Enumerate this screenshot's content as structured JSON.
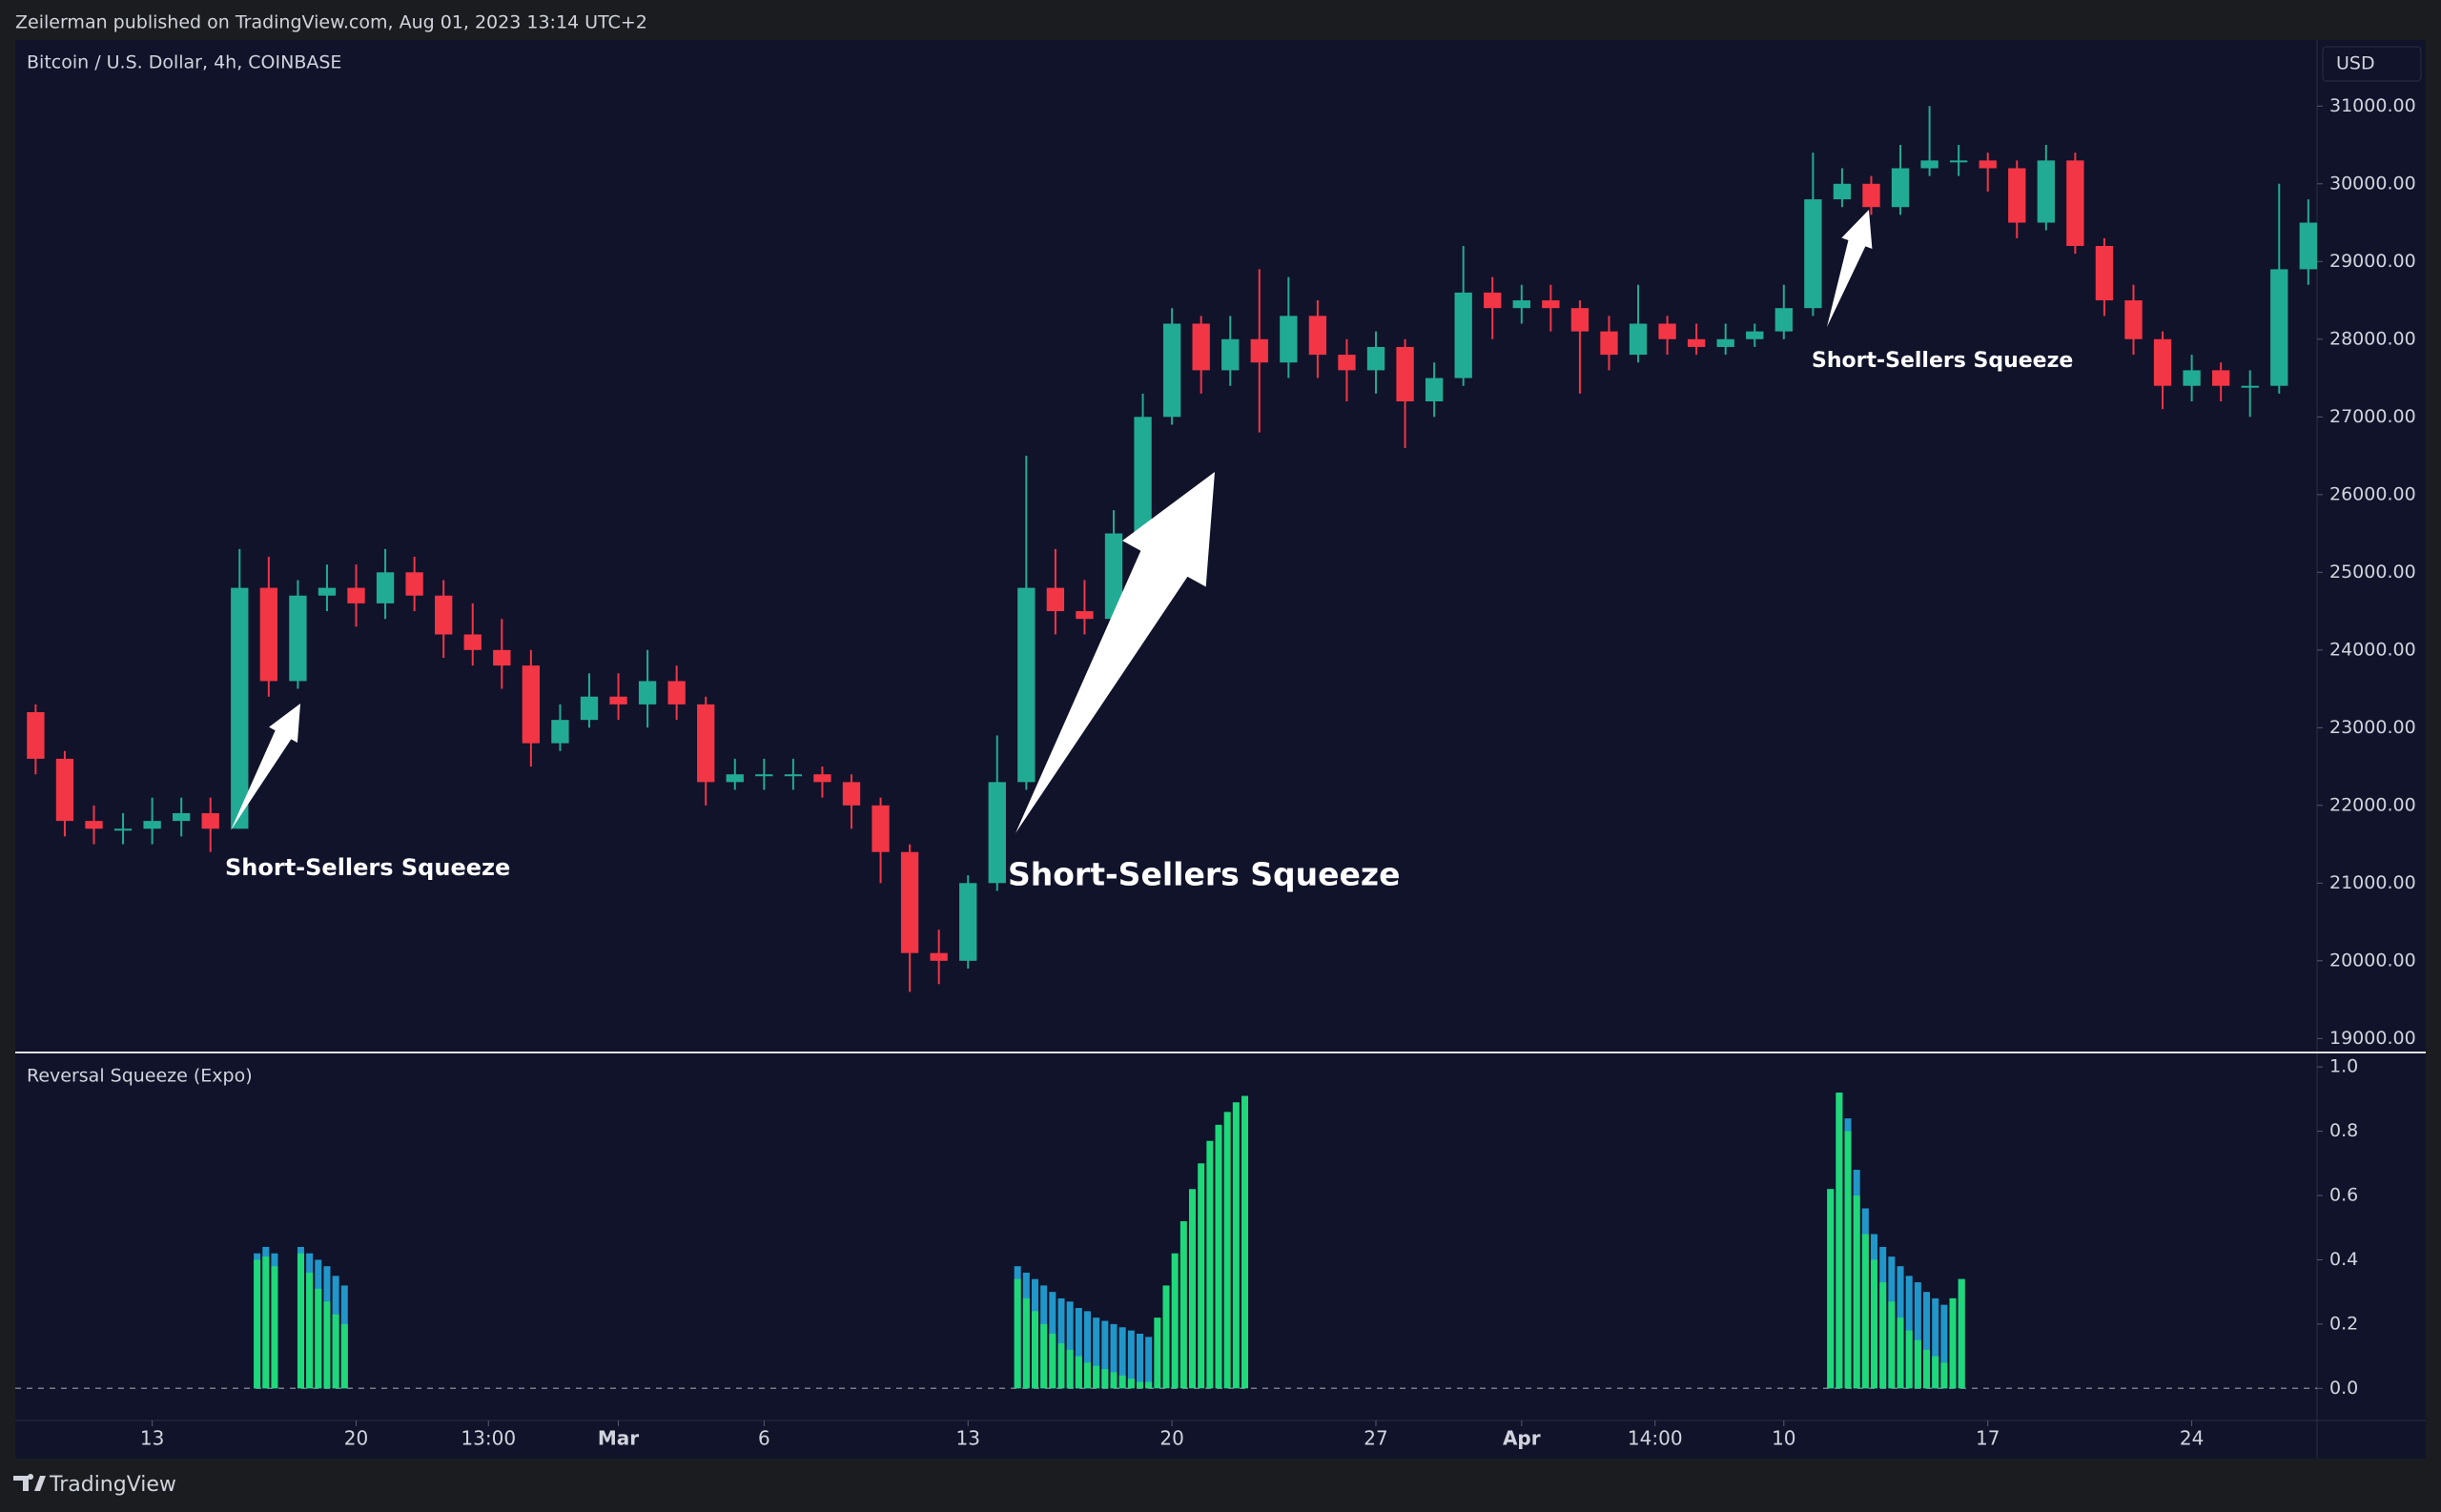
{
  "header": "Zeilerman published on TradingView.com, Aug 01, 2023 13:14 UTC+2",
  "footer": "TradingView",
  "chart_data": [
    {
      "type": "candlestick",
      "title": "Bitcoin / U.S. Dollar, 4h, COINBASE",
      "currency": "USD",
      "up_color": "#22ab94",
      "down_color": "#f23645",
      "x": [
        -4,
        -3,
        -2,
        -1,
        0,
        1,
        2,
        3,
        4,
        5,
        6,
        7,
        8,
        9,
        10,
        11,
        12,
        13,
        14,
        15,
        16,
        17,
        18,
        19,
        20,
        21,
        22,
        23,
        24,
        25,
        26,
        27,
        28,
        29,
        30,
        31,
        32,
        33,
        34,
        35,
        36,
        37,
        38,
        39,
        40,
        41,
        42,
        43,
        44,
        45,
        46,
        47,
        48,
        49,
        50,
        51,
        52,
        53,
        54,
        55,
        56,
        57,
        58,
        59,
        60,
        61,
        62,
        63,
        64,
        65,
        66,
        67,
        68,
        69,
        70,
        71,
        72,
        73,
        74
      ],
      "open": [
        23200,
        22600,
        21800,
        21700,
        21700,
        21800,
        21900,
        21700,
        24800,
        23600,
        24700,
        24800,
        24600,
        25000,
        24700,
        24200,
        24000,
        23800,
        22800,
        23100,
        23400,
        23300,
        23600,
        23300,
        22300,
        22400,
        22400,
        22400,
        22300,
        22000,
        21400,
        20100,
        20000,
        21000,
        22300,
        24800,
        24500,
        24400,
        25500,
        27000,
        28200,
        27600,
        28000,
        27700,
        28300,
        27800,
        27600,
        27900,
        27200,
        27500,
        28600,
        28400,
        28500,
        28400,
        28100,
        27800,
        28200,
        28000,
        27900,
        28000,
        28100,
        28400,
        29800,
        30000,
        29700,
        30200,
        30300,
        30300,
        30200,
        29500,
        30300,
        29200,
        28500,
        28000,
        27400,
        27600,
        27400,
        27400,
        28900
      ],
      "high": [
        23300,
        22700,
        22000,
        21900,
        22100,
        22100,
        22100,
        25300,
        25200,
        24900,
        25100,
        25100,
        25300,
        25200,
        24900,
        24600,
        24400,
        24000,
        23300,
        23700,
        23700,
        24000,
        23800,
        23400,
        22600,
        22600,
        22600,
        22500,
        22400,
        22100,
        21500,
        20400,
        21100,
        22900,
        26500,
        25300,
        24900,
        25800,
        27300,
        28400,
        28300,
        28300,
        28900,
        28800,
        28500,
        28000,
        28100,
        28000,
        27700,
        29200,
        28800,
        28700,
        28700,
        28500,
        28300,
        28700,
        28300,
        28200,
        28200,
        28200,
        28700,
        30400,
        30200,
        30100,
        30500,
        31000,
        30500,
        30400,
        30300,
        30500,
        30400,
        29300,
        28700,
        28100,
        27800,
        27700,
        27600,
        30000,
        29800
      ],
      "low": [
        22400,
        21600,
        21500,
        21500,
        21500,
        21600,
        21400,
        21700,
        23400,
        23500,
        24500,
        24300,
        24400,
        24500,
        23900,
        23800,
        23500,
        22500,
        22700,
        23000,
        23100,
        23000,
        23100,
        22000,
        22200,
        22200,
        22200,
        22100,
        21700,
        21000,
        19600,
        19700,
        19900,
        20900,
        22200,
        24200,
        24200,
        24300,
        25400,
        26900,
        27300,
        27400,
        26800,
        27500,
        27500,
        27200,
        27300,
        26600,
        27000,
        27400,
        28000,
        28200,
        28100,
        27300,
        27600,
        27700,
        27800,
        27800,
        27800,
        27900,
        28000,
        28300,
        29700,
        29600,
        29600,
        30100,
        30100,
        29900,
        29300,
        29400,
        29100,
        28300,
        27800,
        27100,
        27200,
        27200,
        27000,
        27300,
        28700
      ],
      "close": [
        22600,
        21800,
        21700,
        21700,
        21800,
        21900,
        21700,
        24800,
        23600,
        24700,
        24800,
        24600,
        25000,
        24700,
        24200,
        24000,
        23800,
        22800,
        23100,
        23400,
        23300,
        23600,
        23300,
        22300,
        22400,
        22400,
        22400,
        22300,
        22000,
        21400,
        20100,
        20000,
        21000,
        22300,
        24800,
        24500,
        24400,
        25500,
        27000,
        28200,
        27600,
        28000,
        27700,
        28300,
        27800,
        27600,
        27900,
        27200,
        27500,
        28600,
        28400,
        28500,
        28400,
        28100,
        27800,
        28200,
        28000,
        27900,
        28000,
        28100,
        28400,
        29800,
        30000,
        29700,
        30200,
        30300,
        30300,
        30200,
        29500,
        30300,
        29200,
        28500,
        28000,
        27400,
        27600,
        27400,
        27400,
        28900,
        29500
      ],
      "xlim": [
        -4.7,
        74.3
      ],
      "ylim": [
        18820,
        31850
      ],
      "yticks": [
        {
          "value": 19000,
          "label": "19000.00"
        },
        {
          "value": 20000,
          "label": "20000.00"
        },
        {
          "value": 21000,
          "label": "21000.00"
        },
        {
          "value": 22000,
          "label": "22000.00"
        },
        {
          "value": 23000,
          "label": "23000.00"
        },
        {
          "value": 24000,
          "label": "24000.00"
        },
        {
          "value": 25000,
          "label": "25000.00"
        },
        {
          "value": 26000,
          "label": "26000.00"
        },
        {
          "value": 27000,
          "label": "27000.00"
        },
        {
          "value": 28000,
          "label": "28000.00"
        },
        {
          "value": 29000,
          "label": "29000.00"
        },
        {
          "value": 30000,
          "label": "30000.00"
        },
        {
          "value": 31000,
          "label": "31000.00"
        }
      ],
      "annotations": [
        "Short-Sellers Squeeze",
        "Short-Sellers Squeeze",
        "Short-Sellers Squeeze"
      ]
    },
    {
      "type": "bar",
      "title": "Reversal Squeeze (Expo)",
      "x": [
        3.6,
        3.9,
        4.2,
        5.1,
        5.4,
        5.7,
        6.0,
        6.3,
        6.6,
        29.7,
        30.0,
        30.3,
        30.6,
        30.9,
        31.2,
        31.5,
        31.8,
        32.1,
        32.4,
        32.7,
        33.0,
        33.3,
        33.6,
        33.9,
        34.2,
        34.5,
        34.8,
        35.1,
        35.4,
        35.7,
        36.0,
        36.3,
        36.6,
        36.9,
        37.2,
        37.5,
        57.6,
        57.9,
        58.2,
        58.5,
        58.8,
        59.1,
        59.4,
        59.7,
        60.0,
        60.3,
        60.6,
        60.9,
        61.2,
        61.5,
        61.8,
        62.1
      ],
      "series": [
        {
          "color": "#2196c8",
          "values": [
            0.42,
            0.44,
            0.42,
            0.44,
            0.42,
            0.4,
            0.38,
            0.35,
            0.32,
            0.38,
            0.36,
            0.34,
            0.32,
            0.3,
            0.28,
            0.27,
            0.25,
            0.24,
            0.22,
            0.21,
            0.2,
            0.19,
            0.18,
            0.17,
            0.16,
            null,
            null,
            null,
            null,
            null,
            null,
            null,
            null,
            null,
            null,
            null,
            0.62,
            0.92,
            0.84,
            0.68,
            0.56,
            0.48,
            0.44,
            0.41,
            0.38,
            0.35,
            0.33,
            0.3,
            0.28,
            0.26,
            0.28,
            0.34
          ]
        },
        {
          "color": "#1fd87a",
          "values": [
            0.4,
            0.41,
            0.38,
            0.42,
            0.36,
            0.31,
            0.27,
            0.23,
            0.2,
            0.34,
            0.28,
            0.24,
            0.2,
            0.17,
            0.14,
            0.12,
            0.1,
            0.08,
            0.07,
            0.06,
            0.05,
            0.04,
            0.03,
            0.02,
            0.02,
            0.22,
            0.32,
            0.42,
            0.52,
            0.62,
            0.7,
            0.77,
            0.82,
            0.86,
            0.89,
            0.91,
            0.62,
            0.92,
            0.8,
            0.6,
            0.48,
            0.4,
            0.33,
            0.27,
            0.22,
            0.18,
            0.15,
            0.12,
            0.1,
            0.08,
            0.28,
            0.34
          ]
        }
      ],
      "xlim": [
        -4.7,
        74.3
      ],
      "ylim": [
        -0.1,
        1.045
      ],
      "xticks": [
        {
          "value": 0,
          "label": "13"
        },
        {
          "value": 7,
          "label": "20"
        },
        {
          "value": 11.54,
          "label": "13:00"
        },
        {
          "value": 16,
          "label": "Mar"
        },
        {
          "value": 21,
          "label": "6"
        },
        {
          "value": 28,
          "label": "13"
        },
        {
          "value": 35,
          "label": "20"
        },
        {
          "value": 42,
          "label": "27"
        },
        {
          "value": 47,
          "label": "Apr"
        },
        {
          "value": 51.58,
          "label": "14:00"
        },
        {
          "value": 56,
          "label": "10"
        },
        {
          "value": 63,
          "label": "17"
        },
        {
          "value": 70,
          "label": "24"
        }
      ],
      "yticks": [
        {
          "value": 0,
          "label": "0.0"
        },
        0.2,
        0.4,
        0.6,
        0.8,
        {
          "value": 1,
          "label": "1.0"
        }
      ]
    }
  ]
}
